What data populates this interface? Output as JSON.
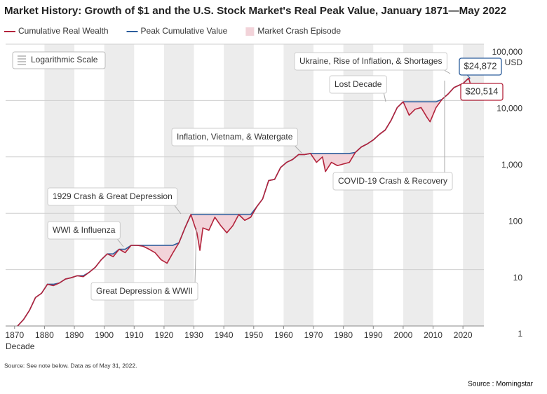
{
  "chart_data": {
    "type": "line",
    "title": "Market History: Growth of $1 and the U.S. Stock Market's Real Peak Value, January 1871—May 2022",
    "x_label": "Decade",
    "y_unit": "USD",
    "log_scale": true,
    "scale_note": "Logarithmic Scale",
    "crash_label": "Market Crash Episode",
    "crash_color": "#f2d3d9",
    "x": [
      1871,
      1873,
      1875,
      1877,
      1879,
      1881,
      1883,
      1885,
      1887,
      1889,
      1891,
      1893,
      1895,
      1897,
      1899,
      1901,
      1903,
      1905,
      1907,
      1909,
      1911,
      1913,
      1915,
      1917,
      1919,
      1921,
      1923,
      1925,
      1927,
      1929,
      1931,
      1932,
      1933,
      1935,
      1937,
      1939,
      1941,
      1943,
      1945,
      1947,
      1949,
      1951,
      1953,
      1955,
      1957,
      1959,
      1961,
      1963,
      1965,
      1967,
      1969,
      1971,
      1973,
      1974,
      1976,
      1978,
      1980,
      1982,
      1984,
      1986,
      1988,
      1990,
      1992,
      1994,
      1996,
      1998,
      2000,
      2002,
      2004,
      2006,
      2008,
      2009,
      2011,
      2013,
      2015,
      2017,
      2019,
      2020,
      2021.9,
      2022.4
    ],
    "series": [
      {
        "name": "Cumulative Real Wealth",
        "color": "#b3233b",
        "end_label": "$20,514",
        "values": [
          1,
          1.3,
          1.9,
          3.2,
          3.8,
          5.5,
          5.2,
          5.8,
          6.8,
          7.2,
          7.8,
          7.5,
          9,
          11,
          15,
          19,
          17,
          23,
          20,
          27,
          27,
          26,
          23,
          20,
          15,
          13,
          20,
          30,
          55,
          95,
          45,
          22,
          55,
          50,
          85,
          60,
          45,
          60,
          95,
          75,
          85,
          130,
          180,
          380,
          400,
          650,
          800,
          900,
          1100,
          1100,
          1150,
          800,
          1000,
          550,
          800,
          700,
          750,
          800,
          1200,
          1500,
          1700,
          2000,
          2500,
          3000,
          4500,
          7500,
          9500,
          5500,
          7000,
          7500,
          5000,
          4200,
          7500,
          10500,
          13000,
          17000,
          19000,
          20000,
          24872,
          20514
        ]
      },
      {
        "name": "Peak Cumulative Value",
        "color": "#2c5d9c",
        "end_label": "$24,872",
        "values": [
          1,
          1.3,
          1.9,
          3.2,
          3.8,
          5.5,
          5.5,
          5.8,
          6.8,
          7.2,
          7.8,
          7.8,
          9,
          11,
          15,
          19,
          19,
          23,
          23,
          27,
          27,
          27,
          27,
          27,
          27,
          27,
          27,
          30,
          55,
          95,
          95,
          95,
          95,
          95,
          95,
          95,
          95,
          95,
          95,
          95,
          95,
          130,
          180,
          380,
          400,
          650,
          800,
          900,
          1100,
          1100,
          1150,
          1150,
          1150,
          1150,
          1150,
          1150,
          1150,
          1150,
          1200,
          1500,
          1700,
          2000,
          2500,
          3000,
          4500,
          7500,
          9500,
          9500,
          9500,
          9500,
          9500,
          9500,
          9500,
          10500,
          13000,
          17000,
          19000,
          20000,
          24872,
          24872
        ]
      }
    ],
    "annotations": [
      "Ukraine, Rise of Inflation, & Shortages",
      "Lost Decade",
      "Inflation, Vietnam, & Watergate",
      "COVID-19 Crash & Recovery",
      "1929 Crash & Great Depression",
      "WWI & Influenza",
      "Great Depression & WWII"
    ],
    "xlim": [
      1867,
      2027
    ],
    "xticks": [
      1870,
      1880,
      1890,
      1900,
      1910,
      1920,
      1930,
      1940,
      1950,
      1960,
      1970,
      1980,
      1990,
      2000,
      2010,
      2020
    ],
    "ylim": [
      1,
      100000
    ],
    "yticks": [
      1,
      10,
      100,
      {
        "value": 1000,
        "label": "1,000"
      },
      {
        "value": 10000,
        "label": "10,000"
      },
      {
        "value": 100000,
        "label": "100,000"
      }
    ],
    "grid": true
  },
  "footer": {
    "note": "Source: See note below. Data as of May 31, 2022.",
    "source": "Source : Morningstar"
  }
}
